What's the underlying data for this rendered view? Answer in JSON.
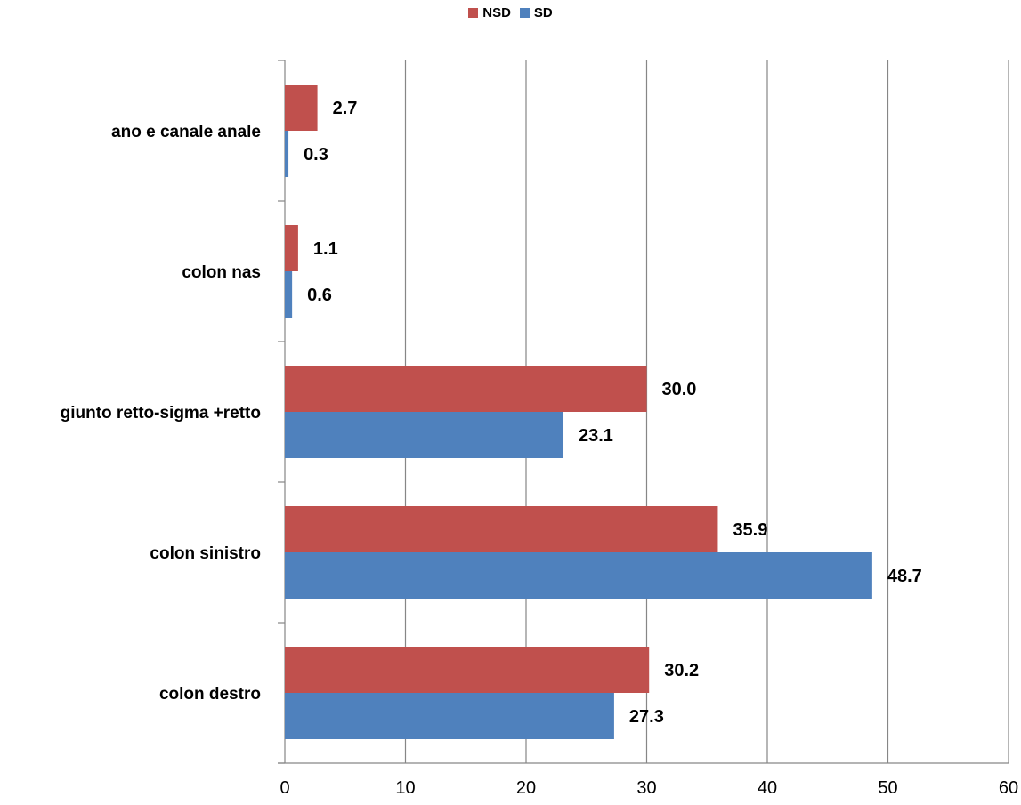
{
  "chart_data": {
    "type": "bar",
    "orientation": "horizontal",
    "categories": [
      "ano e canale anale",
      "colon nas",
      "giunto retto-sigma +retto",
      "colon sinistro",
      "colon destro"
    ],
    "series": [
      {
        "name": "NSD",
        "color": "#c0504d",
        "values": [
          2.7,
          1.1,
          30.0,
          35.9,
          30.2
        ],
        "labels": [
          "2.7",
          "1.1",
          "30.0",
          "35.9",
          "30.2"
        ]
      },
      {
        "name": "SD",
        "color": "#4f81bd",
        "values": [
          0.3,
          0.6,
          23.1,
          48.7,
          27.3
        ],
        "labels": [
          "0.3",
          "0.6",
          "23.1",
          "48.7",
          "27.3"
        ]
      }
    ],
    "xlim": [
      0,
      60
    ],
    "xticks": [
      0,
      10,
      20,
      30,
      40,
      50,
      60
    ],
    "grid": true,
    "legend": "top-center"
  }
}
